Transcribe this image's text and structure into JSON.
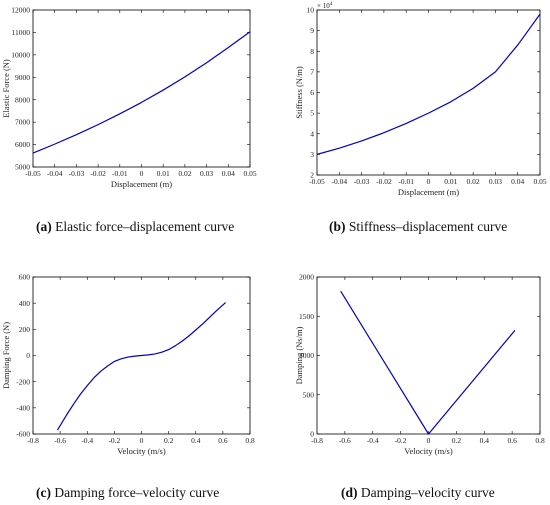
{
  "chart_data": [
    {
      "type": "line",
      "title": "",
      "xlabel": "Displacement (m)",
      "ylabel": "Elastic Force (N)",
      "xlim": [
        -0.05,
        0.05
      ],
      "ylim": [
        5000,
        12000
      ],
      "xticks": [
        "-0.05",
        "-0.04",
        "-0.03",
        "-0.02",
        "-0.01",
        "0",
        "0.01",
        "0.02",
        "0.03",
        "0.04",
        "0.05"
      ],
      "yticks": [
        "5000",
        "6000",
        "7000",
        "8000",
        "9000",
        "10000",
        "11000",
        "12000"
      ],
      "grid": false,
      "color": "#0000cc",
      "series": [
        {
          "x": [
            -0.05,
            -0.04,
            -0.03,
            -0.02,
            -0.01,
            0,
            0.01,
            0.02,
            0.03,
            0.04,
            0.05
          ],
          "y": [
            5620,
            6020,
            6440,
            6890,
            7370,
            7880,
            8430,
            9020,
            9650,
            10330,
            11030
          ]
        }
      ],
      "caption": {
        "label": "(a)",
        "text": " Elastic force–displacement curve"
      }
    },
    {
      "type": "line",
      "title": "",
      "xlabel": "Displacement (m)",
      "ylabel": "Stiffness (N/m)",
      "y_exponent": "× 10",
      "y_exponent_power": "4",
      "xlim": [
        -0.05,
        0.05
      ],
      "ylim": [
        2,
        10
      ],
      "xticks": [
        "-0.05",
        "-0.04",
        "-0.03",
        "-0.02",
        "-0.01",
        "0",
        "0.01",
        "0.02",
        "0.03",
        "0.04",
        "0.05"
      ],
      "yticks": [
        "2",
        "3",
        "4",
        "5",
        "6",
        "7",
        "8",
        "9",
        "10"
      ],
      "grid": false,
      "color": "#0000cc",
      "series": [
        {
          "x": [
            -0.05,
            -0.04,
            -0.03,
            -0.02,
            -0.01,
            0,
            0.01,
            0.02,
            0.03,
            0.04,
            0.05
          ],
          "y": [
            3.0,
            3.3,
            3.65,
            4.05,
            4.5,
            5.0,
            5.55,
            6.2,
            7.0,
            8.3,
            9.8
          ]
        }
      ],
      "caption": {
        "label": "(b)",
        "text": " Stiffness–displacement curve"
      }
    },
    {
      "type": "line",
      "title": "",
      "xlabel": "Velocity (m/s)",
      "ylabel": "Damping Force (N)",
      "xlim": [
        -0.8,
        0.8
      ],
      "ylim": [
        -600,
        600
      ],
      "xticks": [
        "-0.8",
        "-0.6",
        "-0.4",
        "-0.2",
        "0",
        "0.2",
        "0.4",
        "0.6",
        "0.8"
      ],
      "yticks": [
        "-600",
        "-400",
        "-200",
        "0",
        "200",
        "400",
        "600"
      ],
      "grid": false,
      "color": "#0000cc",
      "series": [
        {
          "x": [
            -0.62,
            -0.55,
            -0.5,
            -0.45,
            -0.4,
            -0.35,
            -0.3,
            -0.25,
            -0.2,
            -0.15,
            -0.1,
            -0.05,
            0,
            0.05,
            0.1,
            0.15,
            0.2,
            0.25,
            0.3,
            0.35,
            0.4,
            0.45,
            0.5,
            0.55,
            0.62
          ],
          "y": [
            -570,
            -450,
            -370,
            -295,
            -230,
            -170,
            -120,
            -80,
            -45,
            -25,
            -12,
            -5,
            0,
            5,
            12,
            25,
            45,
            75,
            110,
            150,
            195,
            240,
            290,
            340,
            405
          ]
        }
      ],
      "caption": {
        "label": "(c)",
        "text": " Damping force–velocity curve"
      }
    },
    {
      "type": "line",
      "title": "",
      "xlabel": "Velocity (m/s)",
      "ylabel": "Damping (Ns/m)",
      "xlim": [
        -0.8,
        0.8
      ],
      "ylim": [
        0,
        2000
      ],
      "xticks": [
        "-0.8",
        "-0.6",
        "-0.4",
        "-0.2",
        "0",
        "0.2",
        "0.4",
        "0.6",
        "0.8"
      ],
      "yticks": [
        "0",
        "500",
        "1000",
        "1500",
        "2000"
      ],
      "grid": false,
      "color": "#0000cc",
      "series": [
        {
          "x": [
            -0.63,
            0,
            0.62
          ],
          "y": [
            1820,
            0,
            1320
          ]
        }
      ],
      "caption": {
        "label": "(d)",
        "text": " Damping–velocity curve"
      }
    }
  ]
}
